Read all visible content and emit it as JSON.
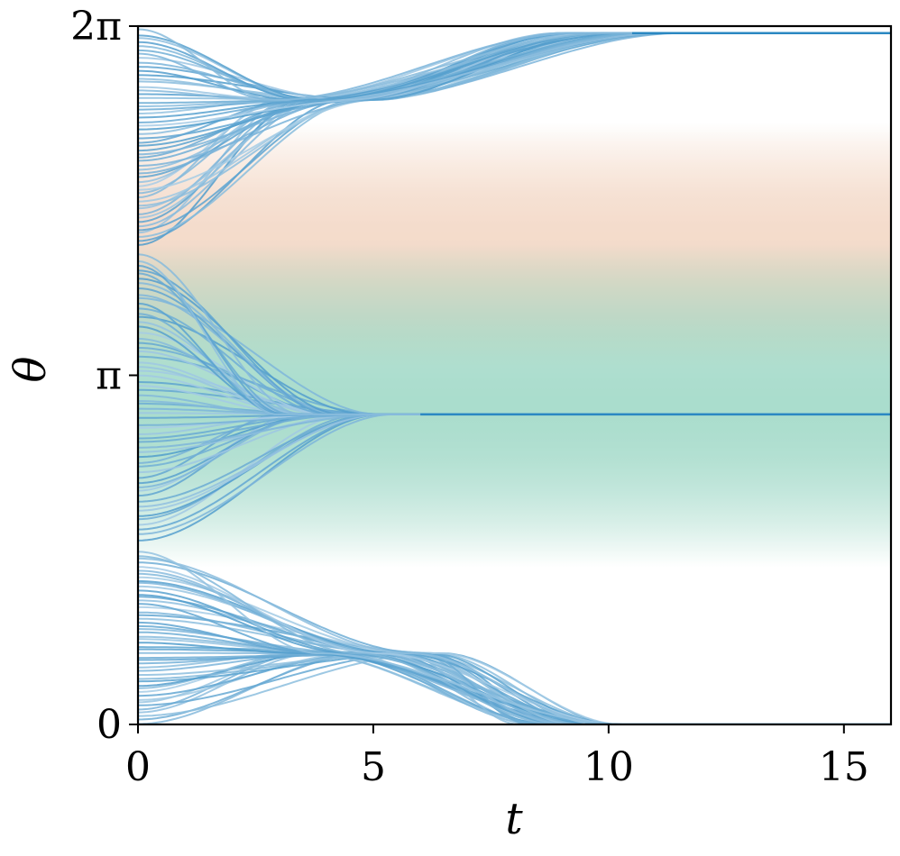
{
  "chart_data": {
    "type": "line",
    "title": "",
    "xlabel": "t",
    "ylabel": "θ",
    "xlim": [
      0,
      16
    ],
    "ylim": [
      0,
      6.2832
    ],
    "x_ticks": [
      {
        "value": 0,
        "label": "0"
      },
      {
        "value": 5,
        "label": "5"
      },
      {
        "value": 10,
        "label": "10"
      },
      {
        "value": 15,
        "label": "15"
      }
    ],
    "y_ticks": [
      {
        "value": 0,
        "label": "0"
      },
      {
        "value": 3.1416,
        "label": "π"
      },
      {
        "value": 6.2832,
        "label": "2π"
      }
    ],
    "grid": false,
    "legend": "none",
    "line_color_light": "#a8cde6",
    "line_color_dark": "#2b88c2",
    "background_bands": [
      {
        "center": 4.3,
        "halfwidth": 1.1,
        "color": "#eab998",
        "peak_opacity": 0.5
      },
      {
        "center": 2.88,
        "halfwidth": 1.45,
        "color": "#66c2a5",
        "peak_opacity": 0.55
      }
    ],
    "attractors": [
      {
        "theta_final": 6.22,
        "t_converge": 10.5
      },
      {
        "theta_final": 2.79,
        "t_converge": 6.0
      },
      {
        "theta_final": 0.0,
        "t_converge": 9.5
      }
    ],
    "trajectory_clusters": [
      {
        "theta0_range": [
          4.3,
          6.27
        ],
        "theta_mid": 5.62,
        "t_mid": 4.0,
        "theta_final": 6.22,
        "t_converge": 10.5,
        "count": 55
      },
      {
        "theta0_range": [
          1.65,
          4.25
        ],
        "theta_mid": 2.79,
        "t_mid": 4.2,
        "theta_final": 2.79,
        "t_converge": 6.0,
        "count": 60
      },
      {
        "theta0_range": [
          0.0,
          1.57
        ],
        "theta_mid": 0.64,
        "t_mid": 5.0,
        "theta_final": 0.0,
        "t_converge": 9.5,
        "count": 50
      }
    ]
  }
}
